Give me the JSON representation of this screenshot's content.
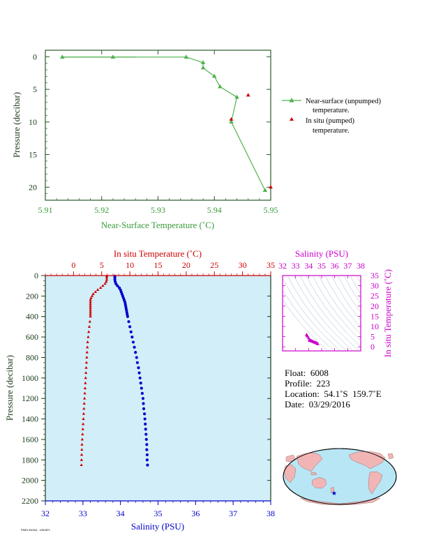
{
  "colors": {
    "near_surface": "#4db34d",
    "insitu_temp": "#cc0000",
    "salinity": "#0000cc",
    "ts_axis": "#cc00cc",
    "pressure_axis": "#1a3a1a",
    "profile_bg": "#d2eef8"
  },
  "chart_data": [
    {
      "type": "line",
      "xlabel": "Near-Surface Temperature (˚C)",
      "ylabel": "Pressure (decibar)",
      "xlim": [
        5.91,
        5.95
      ],
      "ylim": [
        22,
        -1
      ],
      "x_ticks": [
        "5.91",
        "5.92",
        "5.93",
        "5.94",
        "5.95"
      ],
      "y_ticks": [
        "0",
        "5",
        "10",
        "15",
        "20"
      ],
      "series": [
        {
          "name": "Near-surface (unpumped) temperature.",
          "marker": "triangle",
          "x": [
            5.913,
            5.922,
            5.935,
            5.938,
            5.938,
            5.94,
            5.941,
            5.944,
            5.943,
            5.949
          ],
          "y": [
            0.05,
            0.05,
            0.05,
            0.9,
            1.7,
            3.0,
            4.6,
            6.2,
            10.0,
            20.5
          ]
        },
        {
          "name": "In situ (pumped) temperature.",
          "marker": "triangle",
          "x": [
            5.946,
            5.943,
            5.95
          ],
          "y": [
            5.9,
            9.6,
            20.0
          ]
        }
      ]
    },
    {
      "type": "scatter",
      "top_xlabel": "In situ Temperature (˚C)",
      "bottom_xlabel": "Salinity (PSU)",
      "ylabel": "Pressure (decibar)",
      "temp_xlim": [
        -5,
        35
      ],
      "sal_xlim": [
        32,
        38
      ],
      "ylim": [
        2200,
        0
      ],
      "temp_ticks": [
        "0",
        "5",
        "10",
        "15",
        "20",
        "25",
        "30",
        "35"
      ],
      "sal_ticks": [
        "32",
        "33",
        "34",
        "35",
        "36",
        "37",
        "38"
      ],
      "y_ticks": [
        "0",
        "200",
        "400",
        "600",
        "800",
        "1000",
        "1200",
        "1400",
        "1600",
        "1800",
        "2000",
        "2200"
      ],
      "temperature_profile": {
        "p": [
          5,
          20,
          40,
          60,
          80,
          100,
          120,
          140,
          160,
          180,
          200,
          220,
          240,
          260,
          280,
          300,
          320,
          340,
          360,
          380,
          400,
          450,
          500,
          550,
          600,
          650,
          700,
          750,
          800,
          850,
          900,
          950,
          1000,
          1050,
          1100,
          1150,
          1200,
          1250,
          1300,
          1350,
          1400,
          1450,
          1500,
          1550,
          1600,
          1650,
          1700,
          1750,
          1800,
          1850
        ],
        "t": [
          5.9,
          5.9,
          5.9,
          5.8,
          5.6,
          5.2,
          4.8,
          4.3,
          3.9,
          3.5,
          3.3,
          3.1,
          3.0,
          3.0,
          3.0,
          3.0,
          3.0,
          3.0,
          3.0,
          3.0,
          3.0,
          2.9,
          2.8,
          2.7,
          2.6,
          2.5,
          2.45,
          2.4,
          2.35,
          2.3,
          2.25,
          2.2,
          2.15,
          2.1,
          2.05,
          2.0,
          1.95,
          1.9,
          1.85,
          1.8,
          1.75,
          1.7,
          1.65,
          1.6,
          1.55,
          1.5,
          1.48,
          1.45,
          1.42,
          1.4
        ]
      },
      "salinity_profile": {
        "p": [
          5,
          20,
          40,
          60,
          80,
          100,
          120,
          140,
          160,
          180,
          200,
          220,
          240,
          260,
          280,
          300,
          320,
          340,
          360,
          380,
          400,
          450,
          500,
          550,
          600,
          650,
          700,
          750,
          800,
          850,
          900,
          950,
          1000,
          1050,
          1100,
          1150,
          1200,
          1250,
          1300,
          1350,
          1400,
          1450,
          1500,
          1550,
          1600,
          1650,
          1700,
          1750,
          1800,
          1850
        ],
        "s": [
          33.85,
          33.85,
          33.85,
          33.86,
          33.88,
          33.92,
          33.97,
          34.0,
          34.02,
          34.04,
          34.06,
          34.08,
          34.1,
          34.12,
          34.13,
          34.14,
          34.15,
          34.16,
          34.17,
          34.18,
          34.19,
          34.22,
          34.25,
          34.28,
          34.31,
          34.34,
          34.37,
          34.4,
          34.43,
          34.45,
          34.48,
          34.5,
          34.52,
          34.54,
          34.56,
          34.58,
          34.6,
          34.61,
          34.62,
          34.64,
          34.65,
          34.66,
          34.67,
          34.68,
          34.69,
          34.7,
          34.7,
          34.71,
          34.71,
          34.72
        ]
      }
    },
    {
      "type": "scatter",
      "top_xlabel": "Salinity (PSU)",
      "ylabel": "In situ Temperature (˚C)",
      "xlim": [
        32,
        38
      ],
      "ylim": [
        -2,
        35
      ],
      "x_ticks": [
        "32",
        "33",
        "34",
        "35",
        "36",
        "37",
        "38"
      ],
      "y_ticks": [
        "0",
        "5",
        "10",
        "15",
        "20",
        "25",
        "30",
        "35"
      ],
      "points": {
        "s": [
          33.85,
          33.86,
          33.9,
          34.0,
          34.06,
          34.1,
          34.14,
          34.18,
          34.22,
          34.28,
          34.34,
          34.4,
          34.46,
          34.52,
          34.58,
          34.64,
          34.7
        ],
        "t": [
          5.9,
          5.8,
          5.2,
          4.3,
          3.3,
          3.0,
          3.0,
          3.0,
          2.9,
          2.7,
          2.5,
          2.35,
          2.2,
          2.05,
          1.9,
          1.7,
          1.4
        ]
      }
    }
  ],
  "legend": {
    "near_surface_line1": "Near-surface (unpumped)",
    "near_surface_line2": "temperature.",
    "insitu_line1": "In situ (pumped)",
    "insitu_line2": "temperature."
  },
  "info": {
    "float": "Float:  6008",
    "profile": "Profile:  223",
    "location": "Location:  54.1˚S  159.7˚E",
    "date": "Date:  03/29/2016"
  },
  "map": {
    "float_lat": -54.1,
    "float_lon": 159.7,
    "marker": "star"
  },
  "footer": "PMEL/NOAA · UW/APL"
}
